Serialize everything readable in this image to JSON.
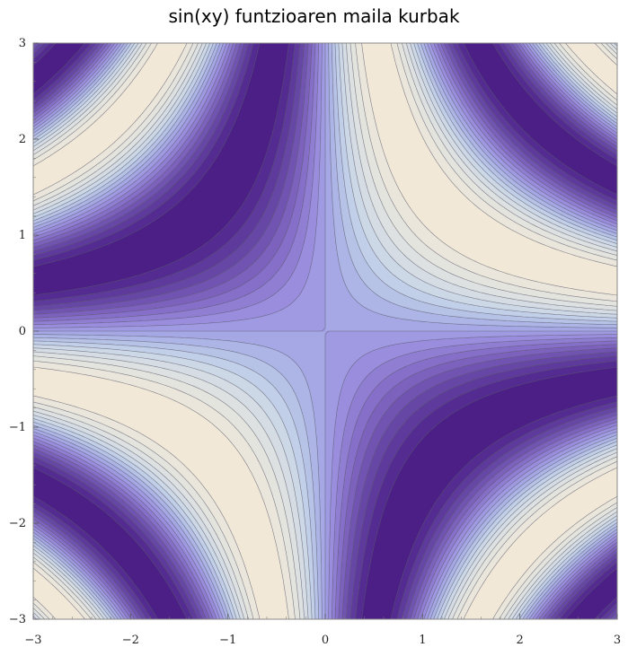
{
  "chart_data": {
    "type": "contour",
    "title": "sin(xy) funtzioaren maila kurbak",
    "function": "sin(xy)",
    "xlim": [
      -3,
      3
    ],
    "ylim": [
      -3,
      3
    ],
    "x_ticks": [
      -3,
      -2,
      -1,
      0,
      1,
      2,
      3
    ],
    "y_ticks": [
      -3,
      -2,
      -1,
      0,
      1,
      2,
      3
    ],
    "x_tick_labels": [
      "−3",
      "−2",
      "−1",
      "0",
      "1",
      "2",
      "3"
    ],
    "y_tick_labels": [
      "−3",
      "−2",
      "−1",
      "0",
      "1",
      "2",
      "3"
    ],
    "contour_levels": [
      -0.9,
      -0.8,
      -0.7,
      -0.6,
      -0.5,
      -0.4,
      -0.3,
      -0.2,
      -0.1,
      0,
      0.1,
      0.2,
      0.3,
      0.4,
      0.5,
      0.6,
      0.7,
      0.8,
      0.9
    ],
    "colormap": [
      "#4b1f86",
      "#6443a3",
      "#8067c2",
      "#9b8fe0",
      "#aab3e6",
      "#c9d6e8",
      "#e0e2e0",
      "#f1e8d8"
    ],
    "grid": false
  }
}
